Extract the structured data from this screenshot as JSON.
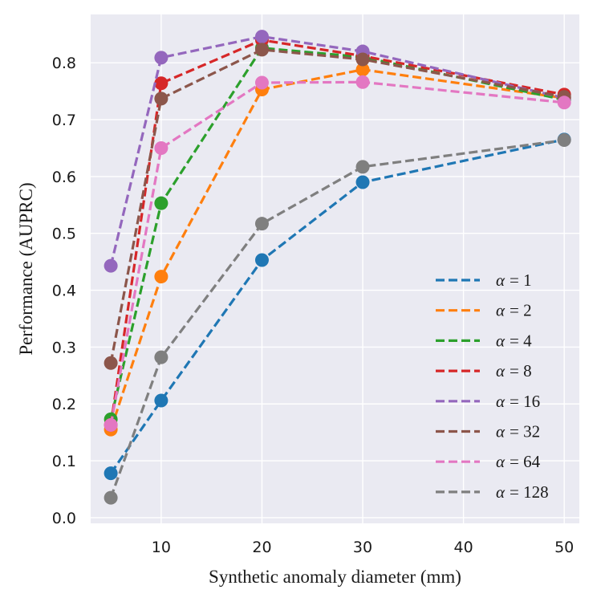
{
  "chart_data": {
    "type": "line",
    "title": "",
    "xlabel": "Synthetic anomaly diameter (mm)",
    "ylabel": "Performance (AUPRC)",
    "x": [
      5,
      10,
      20,
      30,
      50
    ],
    "xlim": [
      3,
      51.5
    ],
    "ylim": [
      -0.01,
      0.885
    ],
    "xticks": [
      10,
      20,
      30,
      40,
      50
    ],
    "xtick_labels": [
      "10",
      "20",
      "30",
      "40",
      "50"
    ],
    "yticks": [
      0.0,
      0.1,
      0.2,
      0.3,
      0.4,
      0.5,
      0.6,
      0.7,
      0.8
    ],
    "ytick_labels": [
      "0.0",
      "0.1",
      "0.2",
      "0.3",
      "0.4",
      "0.5",
      "0.6",
      "0.7",
      "0.8"
    ],
    "grid": true,
    "legend_position": "lower-right",
    "line_style": "dashed",
    "marker": "circle",
    "series": [
      {
        "name": "α = 1",
        "symbol": "α",
        "label": "= 1",
        "color": "#1f77b4",
        "values": [
          0.078,
          0.206,
          0.453,
          0.59,
          0.665
        ]
      },
      {
        "name": "α = 2",
        "symbol": "α",
        "label": "= 2",
        "color": "#ff7f0e",
        "values": [
          0.155,
          0.424,
          0.753,
          0.788,
          0.738
        ]
      },
      {
        "name": "α = 4",
        "symbol": "α",
        "label": "= 4",
        "color": "#2ca02c",
        "values": [
          0.173,
          0.553,
          0.826,
          0.81,
          0.735
        ]
      },
      {
        "name": "α = 8",
        "symbol": "α",
        "label": "= 8",
        "color": "#d62728",
        "values": [
          0.163,
          0.764,
          0.84,
          0.812,
          0.744
        ]
      },
      {
        "name": "α = 16",
        "symbol": "α",
        "label": "= 16",
        "color": "#9467bd",
        "values": [
          0.443,
          0.809,
          0.846,
          0.82,
          0.738
        ]
      },
      {
        "name": "α = 32",
        "symbol": "α",
        "label": "= 32",
        "color": "#8c564b",
        "values": [
          0.272,
          0.737,
          0.823,
          0.806,
          0.74
        ]
      },
      {
        "name": "α = 64",
        "symbol": "α",
        "label": "= 64",
        "color": "#e377c2",
        "values": [
          0.163,
          0.65,
          0.765,
          0.766,
          0.73
        ]
      },
      {
        "name": "α = 128",
        "symbol": "α",
        "label": "= 128",
        "color": "#7f7f7f",
        "values": [
          0.035,
          0.282,
          0.517,
          0.617,
          0.664
        ]
      }
    ]
  },
  "style": {
    "plot_background": "#eaeaf2",
    "grid_color": "#ffffff"
  }
}
